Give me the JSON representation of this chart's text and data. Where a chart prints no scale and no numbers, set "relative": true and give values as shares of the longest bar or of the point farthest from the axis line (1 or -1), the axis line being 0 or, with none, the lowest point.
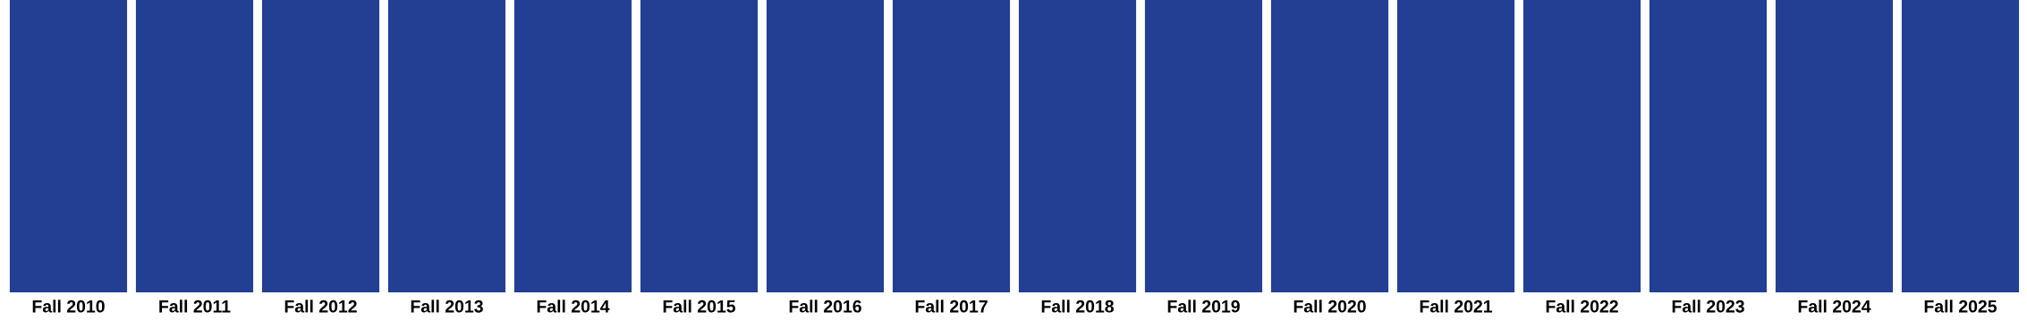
{
  "chart_data": {
    "type": "bar",
    "relative": true,
    "categories": [
      "Fall 2010",
      "Fall 2011",
      "Fall 2012",
      "Fall 2013",
      "Fall 2014",
      "Fall 2015",
      "Fall 2016",
      "Fall 2017",
      "Fall 2018",
      "Fall 2019",
      "Fall 2020",
      "Fall 2021",
      "Fall 2022",
      "Fall 2023",
      "Fall 2024",
      "Fall 2025"
    ],
    "values": [
      1,
      1,
      1,
      1,
      1,
      1,
      1,
      1,
      1,
      1,
      1,
      1,
      1,
      1,
      1,
      1
    ],
    "color": "#223f94",
    "grid": false,
    "legend": false
  }
}
